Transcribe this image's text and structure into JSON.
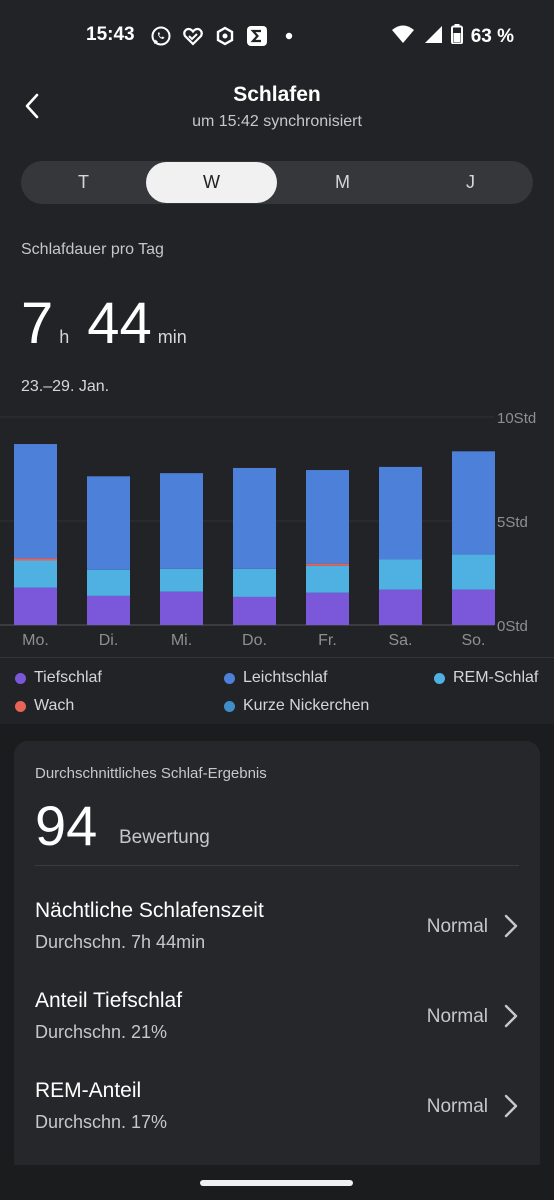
{
  "status_bar": {
    "time": "15:43",
    "battery": "63 %",
    "icons": [
      "whatsapp-icon",
      "heart-check-icon",
      "hexagon-app-icon",
      "sigma-app-icon",
      "notification-dot-icon",
      "wifi-icon",
      "cell-signal-icon",
      "battery-icon"
    ]
  },
  "header": {
    "title": "Schlafen",
    "subtitle": "um 15:42 synchronisiert"
  },
  "tabs": [
    {
      "label": "T",
      "active": false
    },
    {
      "label": "W",
      "active": true
    },
    {
      "label": "M",
      "active": false
    },
    {
      "label": "J",
      "active": false
    }
  ],
  "summary": {
    "section_label": "Schlafdauer pro Tag",
    "hours": "7",
    "hours_unit": "h",
    "minutes": "44",
    "minutes_unit": "min",
    "date_range": "23.–29. Jan."
  },
  "chart_data": {
    "type": "bar",
    "stacked": true,
    "categories": [
      "Mo.",
      "Di.",
      "Mi.",
      "Do.",
      "Fr.",
      "Sa.",
      "So."
    ],
    "y_ticks": [
      {
        "value": 10,
        "label": "10Std"
      },
      {
        "value": 5,
        "label": "5Std"
      },
      {
        "value": 0,
        "label": "0Std"
      }
    ],
    "ylim": [
      0,
      10
    ],
    "series": [
      {
        "name": "Tiefschlaf",
        "color": "#7b57d9",
        "values": [
          1.8,
          1.4,
          1.6,
          1.35,
          1.55,
          1.7,
          1.7
        ]
      },
      {
        "name": "REM-Schlaf",
        "color": "#4fb0e2",
        "values": [
          1.3,
          1.25,
          1.1,
          1.35,
          1.3,
          1.45,
          1.7
        ]
      },
      {
        "name": "Wach",
        "color": "#e86458",
        "values": [
          0.1,
          0,
          0,
          0,
          0.1,
          0,
          0
        ]
      },
      {
        "name": "Leichtschlaf",
        "color": "#4d80d8",
        "values": [
          5.5,
          4.5,
          4.6,
          4.85,
          4.5,
          4.45,
          4.95
        ]
      }
    ]
  },
  "legend": [
    {
      "label": "Tiefschlaf",
      "color": "#7b57d9"
    },
    {
      "label": "Leichtschlaf",
      "color": "#4d80d8"
    },
    {
      "label": "REM-Schlaf",
      "color": "#4fb0e2"
    },
    {
      "label": "Wach",
      "color": "#e86458"
    },
    {
      "label": "Kurze Nickerchen",
      "color": "#3f8ec9"
    }
  ],
  "score_card": {
    "label": "Durchschnittliches Schlaf-Ergebnis",
    "score": "94",
    "score_caption": "Bewertung",
    "rows": [
      {
        "title": "Nächtliche Schlafenszeit",
        "subtitle": "Durchschn. 7h 44min",
        "status": "Normal"
      },
      {
        "title": "Anteil Tiefschlaf",
        "subtitle": "Durchschn. 21%",
        "status": "Normal"
      },
      {
        "title": "REM-Anteil",
        "subtitle": "Durchschn. 17%",
        "status": "Normal"
      }
    ]
  }
}
